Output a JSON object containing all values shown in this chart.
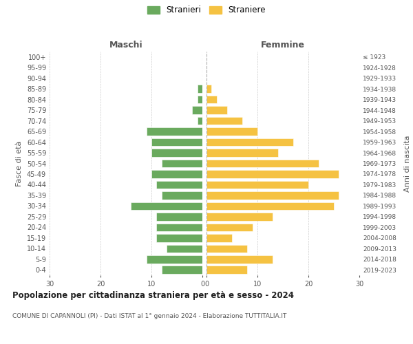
{
  "age_groups": [
    "0-4",
    "5-9",
    "10-14",
    "15-19",
    "20-24",
    "25-29",
    "30-34",
    "35-39",
    "40-44",
    "45-49",
    "50-54",
    "55-59",
    "60-64",
    "65-69",
    "70-74",
    "75-79",
    "80-84",
    "85-89",
    "90-94",
    "95-99",
    "100+"
  ],
  "birth_years": [
    "2019-2023",
    "2014-2018",
    "2009-2013",
    "2004-2008",
    "1999-2003",
    "1994-1998",
    "1989-1993",
    "1984-1988",
    "1979-1983",
    "1974-1978",
    "1969-1973",
    "1964-1968",
    "1959-1963",
    "1954-1958",
    "1949-1953",
    "1944-1948",
    "1939-1943",
    "1934-1938",
    "1929-1933",
    "1924-1928",
    "≤ 1923"
  ],
  "maschi": [
    8,
    11,
    7,
    9,
    9,
    9,
    14,
    8,
    9,
    10,
    8,
    10,
    10,
    11,
    1,
    2,
    1,
    1,
    0,
    0,
    0
  ],
  "femmine": [
    8,
    13,
    8,
    5,
    9,
    13,
    25,
    26,
    20,
    26,
    22,
    14,
    17,
    10,
    7,
    4,
    2,
    1,
    0,
    0,
    0
  ],
  "maschi_color": "#6aaa5e",
  "femmine_color": "#f5c242",
  "title": "Popolazione per cittadinanza straniera per età e sesso - 2024",
  "subtitle": "COMUNE DI CAPANNOLI (PI) - Dati ISTAT al 1° gennaio 2024 - Elaborazione TUTTITALIA.IT",
  "legend_maschi": "Stranieri",
  "legend_femmine": "Straniere",
  "label_left": "Maschi",
  "label_right": "Femmine",
  "ylabel_left": "Fasce di età",
  "ylabel_right": "Anni di nascita",
  "xlim": 30,
  "background_color": "#ffffff",
  "grid_color": "#cccccc",
  "spine_color": "#dddddd"
}
